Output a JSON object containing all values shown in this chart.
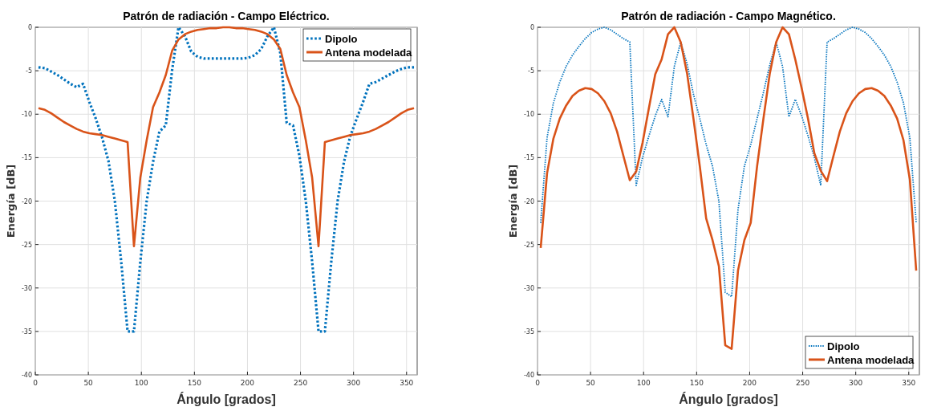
{
  "chart_data": [
    {
      "type": "line",
      "title": "Patrón de radiación - Campo Eléctrico.",
      "xlabel": "Ángulo [grados]",
      "ylabel": "Energía [dB]",
      "x": [
        3,
        9,
        15,
        21,
        27,
        33,
        39,
        45,
        51,
        57,
        63,
        69,
        75,
        81,
        87,
        93,
        99,
        105,
        111,
        117,
        123,
        129,
        135,
        141,
        147,
        153,
        159,
        165,
        171,
        177,
        183,
        189,
        195,
        201,
        207,
        213,
        219,
        225,
        231,
        237,
        243,
        249,
        255,
        261,
        267,
        273,
        279,
        285,
        291,
        297,
        303,
        309,
        315,
        321,
        327,
        333,
        339,
        345,
        351,
        357
      ],
      "xlim": [
        0,
        360
      ],
      "xticks": [
        0,
        50,
        100,
        150,
        200,
        250,
        300,
        350
      ],
      "ylim": [
        -40,
        0
      ],
      "yticks": [
        -40,
        -35,
        -30,
        -25,
        -20,
        -15,
        -10,
        -5,
        0
      ],
      "grid": true,
      "legend": "top right",
      "series": [
        {
          "name": "Dipolo",
          "color": "#0072bd",
          "line_style": "dotted",
          "values": [
            -4.6,
            -4.7,
            -5.1,
            -5.5,
            -6.0,
            -6.5,
            -6.9,
            -6.5,
            -8.6,
            -10.5,
            -12.7,
            -15.4,
            -20,
            -27,
            -35,
            -35,
            -27,
            -20,
            -15.5,
            -12,
            -11.3,
            -4.9,
            0,
            -1,
            -2.8,
            -3.4,
            -3.6,
            -3.6,
            -3.6,
            -3.6,
            -3.6,
            -3.6,
            -3.6,
            -3.5,
            -3.2,
            -2.5,
            -1,
            0,
            -3,
            -11,
            -11.3,
            -14.8,
            -20,
            -27,
            -35,
            -35,
            -27,
            -20,
            -15.5,
            -12.5,
            -10.5,
            -8.6,
            -6.5,
            -6.3,
            -5.9,
            -5.5,
            -5.1,
            -4.8,
            -4.6,
            -4.6
          ]
        },
        {
          "name": "Antena modelada",
          "color": "#d95319",
          "line_style": "solid",
          "values": [
            -9.3,
            -9.5,
            -9.9,
            -10.4,
            -10.9,
            -11.3,
            -11.7,
            -12.0,
            -12.2,
            -12.3,
            -12.4,
            -12.6,
            -12.8,
            -13.0,
            -13.2,
            -25.2,
            -17.3,
            -13,
            -9.2,
            -7.5,
            -5.5,
            -2.7,
            -1.4,
            -0.8,
            -0.5,
            -0.3,
            -0.2,
            -0.1,
            -0.1,
            0,
            0,
            -0.1,
            -0.1,
            -0.2,
            -0.3,
            -0.5,
            -0.8,
            -1.4,
            -2.5,
            -5.5,
            -7.5,
            -9.2,
            -13,
            -17.3,
            -25.2,
            -13.2,
            -13.0,
            -12.8,
            -12.6,
            -12.4,
            -12.3,
            -12.2,
            -12.0,
            -11.7,
            -11.3,
            -10.9,
            -10.4,
            -9.9,
            -9.5,
            -9.3
          ]
        }
      ]
    },
    {
      "type": "line",
      "title": "Patrón de radiación - Campo Magnético.",
      "xlabel": "Ángulo [grados]",
      "ylabel": "Energía [dB]",
      "x": [
        3,
        9,
        15,
        21,
        27,
        33,
        39,
        45,
        51,
        57,
        63,
        69,
        75,
        81,
        87,
        93,
        99,
        105,
        111,
        117,
        123,
        129,
        135,
        141,
        147,
        153,
        159,
        165,
        171,
        177,
        183,
        189,
        195,
        201,
        207,
        213,
        219,
        225,
        231,
        237,
        243,
        249,
        255,
        261,
        267,
        273,
        279,
        285,
        291,
        297,
        303,
        309,
        315,
        321,
        327,
        333,
        339,
        345,
        351,
        357
      ],
      "xlim": [
        0,
        360
      ],
      "xticks": [
        0,
        50,
        100,
        150,
        200,
        250,
        300,
        350
      ],
      "ylim": [
        -40,
        0
      ],
      "yticks": [
        -40,
        -35,
        -30,
        -25,
        -20,
        -15,
        -10,
        -5,
        0
      ],
      "grid": true,
      "legend": "bottom right",
      "series": [
        {
          "name": "Dipolo",
          "color": "#0072bd",
          "line_style": "dotted",
          "values": [
            -22.5,
            -12.7,
            -8.7,
            -6.3,
            -4.5,
            -3.2,
            -2.2,
            -1.3,
            -0.6,
            -0.2,
            0,
            -0.3,
            -0.8,
            -1.3,
            -1.7,
            -18.2,
            -15,
            -12.5,
            -10.2,
            -8.3,
            -10.3,
            -4.5,
            -1.7,
            -4.2,
            -7.7,
            -10.5,
            -13.5,
            -16,
            -20,
            -30.5,
            -31,
            -21,
            -16,
            -13.5,
            -10.5,
            -7.5,
            -4.3,
            -1.7,
            -4.5,
            -10.3,
            -8.3,
            -10.2,
            -12.5,
            -15,
            -18.2,
            -1.7,
            -1.3,
            -0.8,
            -0.3,
            0,
            -0.2,
            -0.6,
            -1.3,
            -2.2,
            -3.2,
            -4.5,
            -6.3,
            -8.7,
            -12.7,
            -22.5
          ]
        },
        {
          "name": "Antena modelada",
          "color": "#d95319",
          "line_style": "solid",
          "values": [
            -25.4,
            -16.8,
            -12.8,
            -10.5,
            -9,
            -7.9,
            -7.3,
            -7.0,
            -7.1,
            -7.6,
            -8.5,
            -9.9,
            -12,
            -14.8,
            -17.6,
            -16.6,
            -13.3,
            -9.3,
            -5.4,
            -3.7,
            -0.8,
            0,
            -1.7,
            -5.3,
            -10.5,
            -16,
            -22,
            -24.5,
            -27.5,
            -36.6,
            -37.0,
            -28,
            -24.5,
            -22.5,
            -16,
            -10.5,
            -5.3,
            -1.7,
            0,
            -0.8,
            -3.7,
            -7,
            -10.5,
            -14.5,
            -16.5,
            -17.7,
            -14.8,
            -12,
            -9.9,
            -8.5,
            -7.6,
            -7.1,
            -7.0,
            -7.3,
            -7.9,
            -9,
            -10.5,
            -13,
            -17.5,
            -28
          ]
        }
      ]
    }
  ]
}
